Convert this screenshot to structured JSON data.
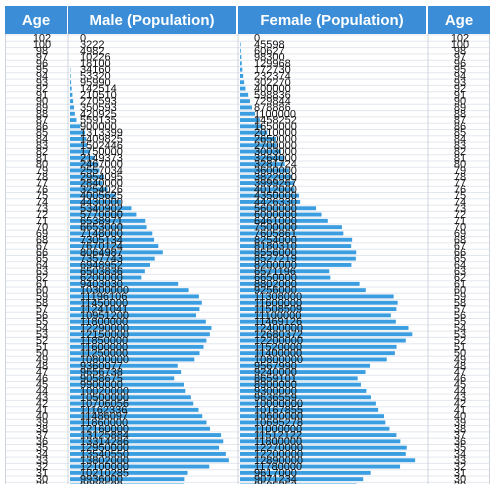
{
  "table": {
    "headers": {
      "age_left": "Age",
      "male": "Male (Population)",
      "female": "Female (Population)",
      "age_right": "Age"
    },
    "bar_color": "#3a9ee0",
    "header_color": "#3a8dd6"
  },
  "chart_data": {
    "type": "table",
    "ages": [
      102,
      100,
      98,
      97,
      96,
      95,
      94,
      93,
      92,
      91,
      90,
      89,
      88,
      87,
      86,
      85,
      84,
      83,
      82,
      81,
      80,
      79,
      78,
      77,
      76,
      75,
      74,
      73,
      72,
      71,
      70,
      69,
      68,
      67,
      66,
      65,
      64,
      63,
      62,
      61,
      60,
      59,
      58,
      57,
      56,
      55,
      54,
      53,
      52,
      51,
      50,
      49,
      48,
      47,
      46,
      45,
      44,
      43,
      42,
      41,
      40,
      39,
      38,
      37,
      36,
      35,
      34,
      33,
      32,
      31,
      30,
      29
    ],
    "male": [
      0,
      3222,
      4982,
      10226,
      18100,
      34160,
      53320,
      95990,
      142514,
      210510,
      270593,
      350593,
      420925,
      559135,
      900000,
      1313399,
      1409825,
      1502446,
      1750000,
      2149373,
      2467000,
      2557034,
      2954095,
      2840000,
      3254026,
      4005625,
      4430000,
      5340902,
      5770000,
      6538971,
      6653000,
      7148000,
      7305134,
      7670124,
      8064987,
      7357743,
      6948952,
      6503836,
      6200000,
      9403030,
      10300000,
      11196106,
      11450000,
      11241041,
      10951200,
      11800000,
      12290000,
      12150000,
      11850000,
      11600000,
      11250000,
      10800000,
      9360077,
      9656738,
      9058675,
      9900000,
      10020000,
      10500000,
      10706056,
      11162336,
      11486097,
      11860000,
      12160000,
      13125884,
      13314286,
      12950000,
      13540550,
      13802000,
      12100000,
      10210285,
      9936000,
      9899589
    ],
    "female": [
      0,
      45598,
      60627,
      98300,
      129968,
      172730,
      232374,
      302270,
      400000,
      598836,
      729844,
      878886,
      1100000,
      1458252,
      1650000,
      2010000,
      2650000,
      2700000,
      3003000,
      3264000,
      3281724,
      3600000,
      3822000,
      3999267,
      4012000,
      4350000,
      4426330,
      5600000,
      6000000,
      6461000,
      7500000,
      7605861,
      8254000,
      8180310,
      8556000,
      8527219,
      8200000,
      6571196,
      6650000,
      8802000,
      9256000,
      11308000,
      11600000,
      11508509,
      11100000,
      11469126,
      12400000,
      12680372,
      12200000,
      11520000,
      11400000,
      10800000,
      9567990,
      9240000,
      8659101,
      8900000,
      9300000,
      9636559,
      10000000,
      10167855,
      10600000,
      10695278,
      11000000,
      11512122,
      11800000,
      12270000,
      12200000,
      12890000,
      11780000,
      9617000,
      9071234,
      8585253
    ]
  }
}
